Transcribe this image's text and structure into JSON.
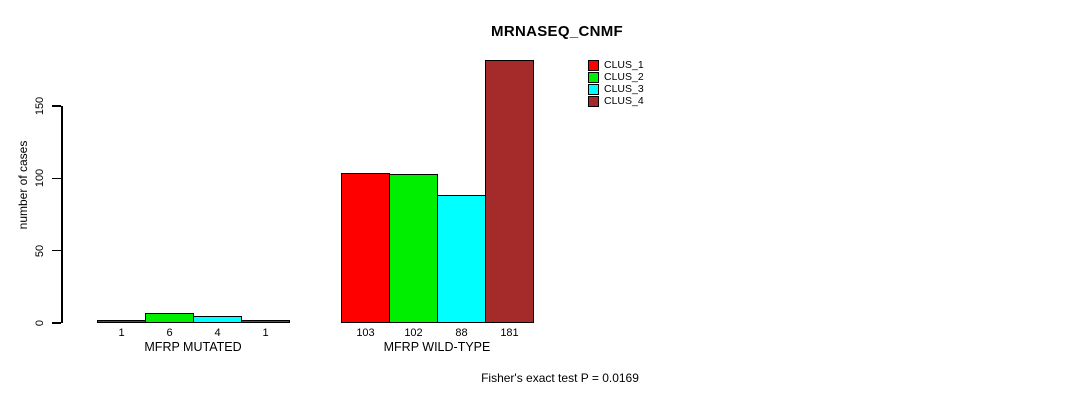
{
  "chart_data": {
    "type": "bar",
    "title": "MRNASEQ_CNMF",
    "ylabel": "number of cases",
    "xlabel": "",
    "yticks": [
      0,
      50,
      100,
      150
    ],
    "ylim": [
      0,
      150
    ],
    "grid": false,
    "legend_position": "top-right",
    "categories": [
      "MFRP MUTATED",
      "MFRP WILD-TYPE"
    ],
    "series": [
      {
        "name": "CLUS_1",
        "color": "#ff0000",
        "values": [
          1,
          103
        ]
      },
      {
        "name": "CLUS_2",
        "color": "#00ee00",
        "values": [
          6,
          102
        ]
      },
      {
        "name": "CLUS_3",
        "color": "#00ffff",
        "values": [
          4,
          88
        ]
      },
      {
        "name": "CLUS_4",
        "color": "#a52a2a",
        "values": [
          1,
          181
        ]
      }
    ],
    "bar_value_labels": [
      [
        "1",
        "6",
        "4",
        "1"
      ],
      [
        "103",
        "102",
        "88",
        "181"
      ]
    ],
    "annotation": "Fisher's exact test P = 0.0169"
  }
}
